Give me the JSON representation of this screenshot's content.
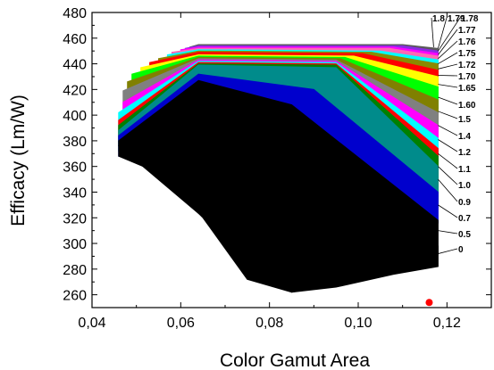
{
  "chart_data": {
    "type": "area",
    "title": "",
    "xlabel": "Color Gamut Area",
    "ylabel": "Efficacy (Lm/W)",
    "xlim": [
      0.04,
      0.13
    ],
    "ylim": [
      250,
      480
    ],
    "x_ticks": [
      "0,04",
      "0,06",
      "0,08",
      "0,10",
      "0,12"
    ],
    "x_tick_values": [
      0.04,
      0.06,
      0.08,
      0.1,
      0.12
    ],
    "y_ticks": [
      "260",
      "280",
      "300",
      "320",
      "340",
      "360",
      "380",
      "400",
      "420",
      "440",
      "460",
      "480"
    ],
    "y_tick_values": [
      260,
      280,
      300,
      320,
      340,
      360,
      380,
      400,
      420,
      440,
      460,
      480
    ],
    "grid": false,
    "series": [
      {
        "name": "1.8",
        "color": "#5a5a5a",
        "upper": [
          [
            0.062,
            453
          ],
          [
            0.064,
            455
          ],
          [
            0.11,
            455
          ],
          [
            0.118,
            452
          ]
        ],
        "lower": [
          [
            0.118,
            446
          ]
        ]
      },
      {
        "name": "1.79",
        "color": "#8a2be2",
        "upper": [
          [
            0.061,
            452
          ],
          [
            0.064,
            454
          ],
          [
            0.11,
            454
          ],
          [
            0.118,
            450
          ]
        ],
        "lower": [
          [
            0.118,
            444
          ]
        ]
      },
      {
        "name": "1.78",
        "color": "#ff00ff",
        "upper": [
          [
            0.06,
            451
          ],
          [
            0.064,
            453
          ],
          [
            0.108,
            453
          ],
          [
            0.118,
            448
          ]
        ],
        "lower": [
          [
            0.118,
            441
          ]
        ]
      },
      {
        "name": "1.77",
        "color": "#ff69b4",
        "upper": [
          [
            0.058,
            449
          ],
          [
            0.064,
            452
          ],
          [
            0.107,
            452
          ],
          [
            0.118,
            446
          ]
        ],
        "lower": [
          [
            0.118,
            438
          ]
        ]
      },
      {
        "name": "1.76",
        "color": "#00ffff",
        "upper": [
          [
            0.057,
            447
          ],
          [
            0.064,
            451
          ],
          [
            0.105,
            450
          ],
          [
            0.118,
            443
          ]
        ],
        "lower": [
          [
            0.118,
            434
          ]
        ]
      },
      {
        "name": "1.75",
        "color": "#8a8a00",
        "upper": [
          [
            0.055,
            444
          ],
          [
            0.064,
            450
          ],
          [
            0.103,
            449
          ],
          [
            0.118,
            440
          ]
        ],
        "lower": [
          [
            0.118,
            430
          ]
        ]
      },
      {
        "name": "1.72",
        "color": "#ff0000",
        "upper": [
          [
            0.053,
            441
          ],
          [
            0.064,
            449
          ],
          [
            0.101,
            448
          ],
          [
            0.118,
            435
          ]
        ],
        "lower": [
          [
            0.118,
            424
          ]
        ]
      },
      {
        "name": "1.70",
        "color": "#ffff00",
        "upper": [
          [
            0.051,
            437
          ],
          [
            0.064,
            447
          ],
          [
            0.099,
            446
          ],
          [
            0.118,
            430
          ]
        ],
        "lower": [
          [
            0.118,
            416
          ]
        ]
      },
      {
        "name": "1.65",
        "color": "#00ff00",
        "upper": [
          [
            0.049,
            432
          ],
          [
            0.064,
            446
          ],
          [
            0.097,
            445
          ],
          [
            0.118,
            422
          ]
        ],
        "lower": [
          [
            0.118,
            405
          ]
        ]
      },
      {
        "name": "1.60",
        "color": "#808000",
        "upper": [
          [
            0.048,
            426
          ],
          [
            0.064,
            445
          ],
          [
            0.096,
            444
          ],
          [
            0.118,
            412
          ]
        ],
        "lower": [
          [
            0.118,
            392
          ]
        ]
      },
      {
        "name": "1.5",
        "color": "#808080",
        "upper": [
          [
            0.047,
            419
          ],
          [
            0.064,
            444
          ],
          [
            0.095,
            443
          ],
          [
            0.118,
            402
          ]
        ],
        "lower": [
          [
            0.118,
            380
          ]
        ]
      },
      {
        "name": "1.4",
        "color": "#ff00ff",
        "upper": [
          [
            0.047,
            410
          ],
          [
            0.064,
            443
          ],
          [
            0.095,
            442
          ],
          [
            0.118,
            392
          ]
        ],
        "lower": [
          [
            0.118,
            368
          ]
        ]
      },
      {
        "name": "1.2",
        "color": "#00ffff",
        "upper": [
          [
            0.046,
            402
          ],
          [
            0.064,
            442
          ],
          [
            0.095,
            441
          ],
          [
            0.118,
            382
          ]
        ],
        "lower": [
          [
            0.118,
            355
          ]
        ]
      },
      {
        "name": "1.1",
        "color": "#ff0000",
        "upper": [
          [
            0.046,
            396
          ],
          [
            0.064,
            441
          ],
          [
            0.095,
            440
          ],
          [
            0.118,
            374
          ]
        ],
        "lower": [
          [
            0.118,
            344
          ]
        ]
      },
      {
        "name": "1.0",
        "color": "#008000",
        "upper": [
          [
            0.046,
            392
          ],
          [
            0.064,
            440
          ],
          [
            0.095,
            439
          ],
          [
            0.118,
            368
          ]
        ],
        "lower": [
          [
            0.118,
            336
          ]
        ]
      },
      {
        "name": "0.9",
        "color": "#008b8b",
        "upper": [
          [
            0.046,
            388
          ],
          [
            0.064,
            439
          ],
          [
            0.095,
            437
          ],
          [
            0.118,
            360
          ]
        ],
        "lower": [
          [
            0.118,
            328
          ]
        ]
      },
      {
        "name": "0.7",
        "color": "#0000cd",
        "upper": [
          [
            0.046,
            384
          ],
          [
            0.064,
            432
          ],
          [
            0.09,
            420
          ],
          [
            0.118,
            340
          ]
        ],
        "lower": [
          [
            0.118,
            316
          ]
        ]
      },
      {
        "name": "0.5",
        "color": "#000000",
        "upper": [
          [
            0.046,
            380
          ],
          [
            0.064,
            427
          ],
          [
            0.085,
            408
          ],
          [
            0.118,
            318
          ]
        ],
        "lower": [
          [
            0.118,
            292
          ],
          [
            0.11,
            282
          ],
          [
            0.095,
            268
          ],
          [
            0.085,
            262
          ],
          [
            0.075,
            272
          ],
          [
            0.065,
            320
          ],
          [
            0.055,
            355
          ],
          [
            0.046,
            368
          ]
        ]
      },
      {
        "name": "0",
        "color": "#000000",
        "upper": [
          [
            0.046,
            376
          ],
          [
            0.064,
            422
          ],
          [
            0.08,
            398
          ],
          [
            0.118,
            298
          ]
        ],
        "lower": [
          [
            0.118,
            282
          ],
          [
            0.108,
            276
          ],
          [
            0.095,
            266
          ],
          [
            0.085,
            262
          ]
        ]
      }
    ],
    "highlight_point": {
      "x": 0.116,
      "y": 254,
      "color": "#ff0000"
    }
  }
}
